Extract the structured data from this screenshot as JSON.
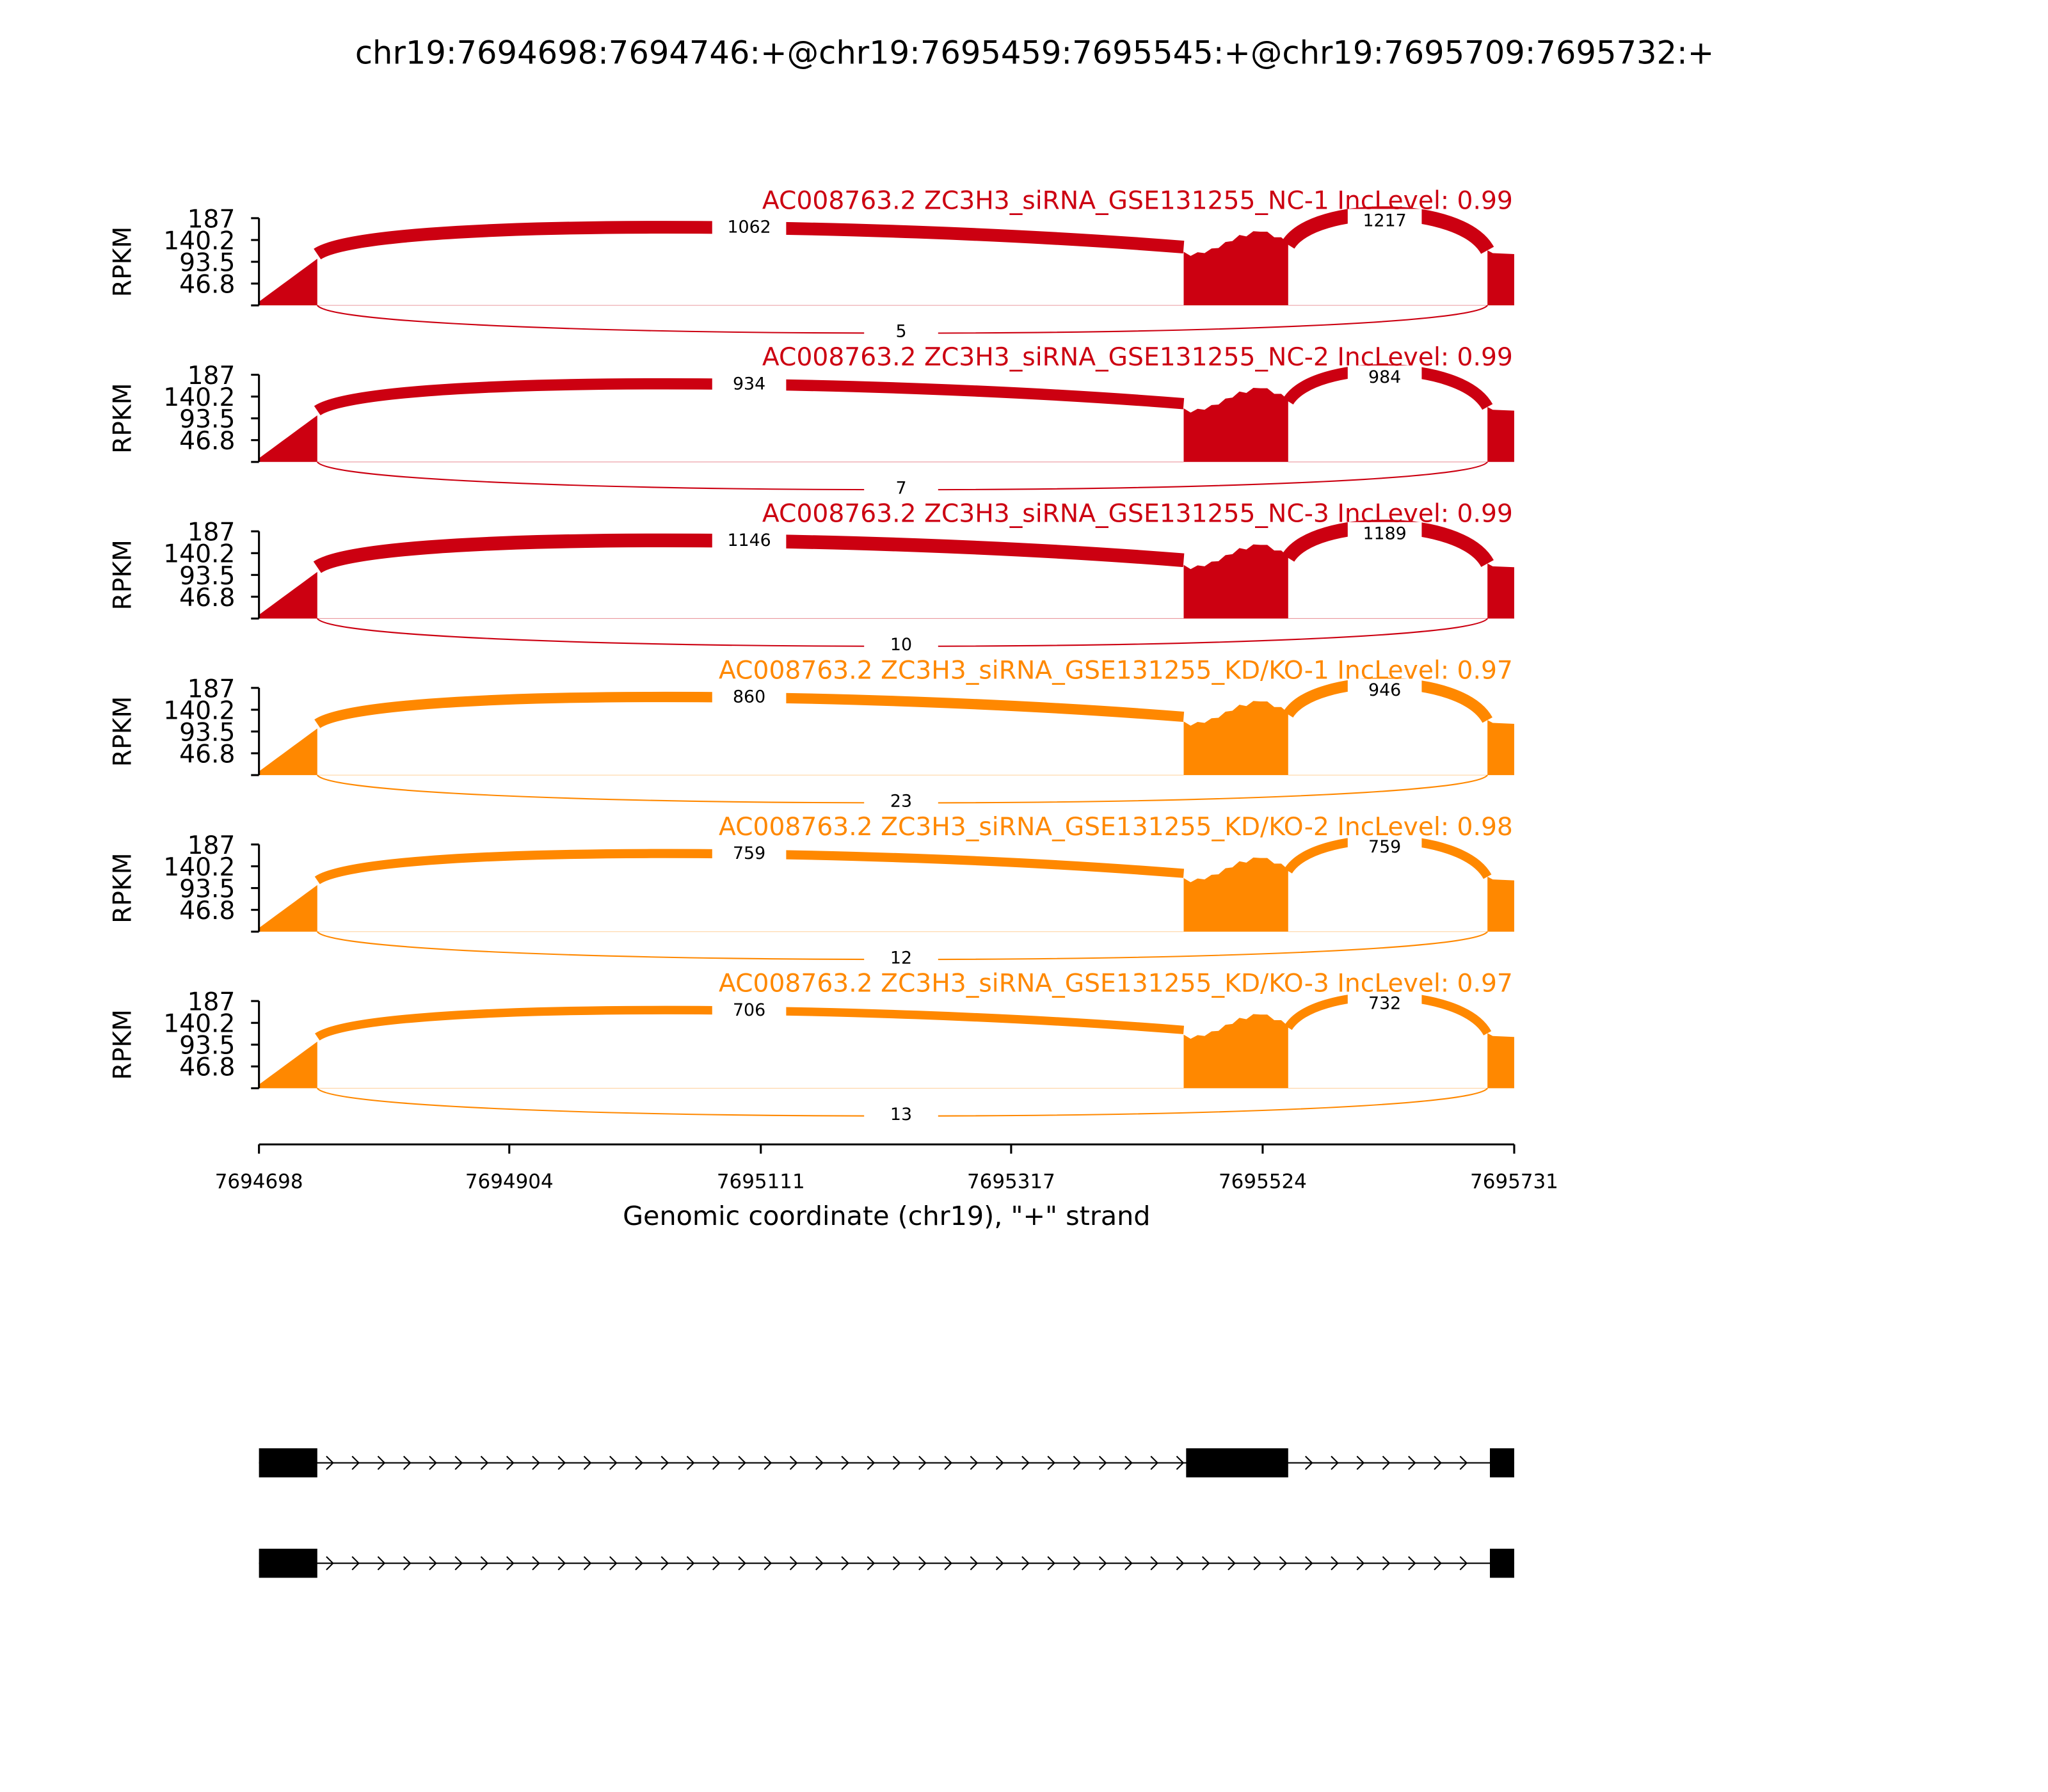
{
  "chart_data": {
    "type": "sashimi",
    "title": "chr19:7694698:7694746:+@chr19:7695459:7695545:+@chr19:7695709:7695732:+",
    "xlabel": "Genomic coordinate (chr19), \"+\" strand",
    "ylabel": "RPKM",
    "xlim": [
      7694698,
      7695731
    ],
    "xticks": [
      "7694698",
      "7694904",
      "7695111",
      "7695317",
      "7695524",
      "7695731"
    ],
    "xtick_values": [
      7694698,
      7694904,
      7695111,
      7695317,
      7695524,
      7695731
    ],
    "ylim": [
      0,
      187
    ],
    "yticks": [
      "46.8",
      "93.5",
      "140.2",
      "187"
    ],
    "ytick_values": [
      46.8,
      93.5,
      140.2,
      187
    ],
    "exons": [
      [
        7694698,
        7694746
      ],
      [
        7695459,
        7695545
      ],
      [
        7695709,
        7695731
      ]
    ],
    "panels": [
      {
        "label": "AC008763.2 ZC3H3_siRNA_GSE131255_NC-1 IncLevel: 0.99",
        "color": "#cc0011",
        "j12": "1062",
        "j23": "1217",
        "j13": "5"
      },
      {
        "label": "AC008763.2 ZC3H3_siRNA_GSE131255_NC-2 IncLevel: 0.99",
        "color": "#cc0011",
        "j12": "934",
        "j23": "984",
        "j13": "7"
      },
      {
        "label": "AC008763.2 ZC3H3_siRNA_GSE131255_NC-3 IncLevel: 0.99",
        "color": "#cc0011",
        "j12": "1146",
        "j23": "1189",
        "j13": "10"
      },
      {
        "label": "AC008763.2 ZC3H3_siRNA_GSE131255_KD/KO-1 IncLevel: 0.97",
        "color": "#ff8800",
        "j12": "860",
        "j23": "946",
        "j13": "23"
      },
      {
        "label": "AC008763.2 ZC3H3_siRNA_GSE131255_KD/KO-2 IncLevel: 0.98",
        "color": "#ff8800",
        "j12": "759",
        "j23": "759",
        "j13": "12"
      },
      {
        "label": "AC008763.2 ZC3H3_siRNA_GSE131255_KD/KO-3 IncLevel: 0.97",
        "color": "#ff8800",
        "j12": "706",
        "j23": "732",
        "j13": "13"
      }
    ],
    "isoforms": [
      {
        "exons": [
          [
            7694698,
            7694746
          ],
          [
            7695461,
            7695545
          ],
          [
            7695711,
            7695731
          ]
        ]
      },
      {
        "exons": [
          [
            7694698,
            7694746
          ],
          [
            7695711,
            7695731
          ]
        ]
      }
    ]
  }
}
